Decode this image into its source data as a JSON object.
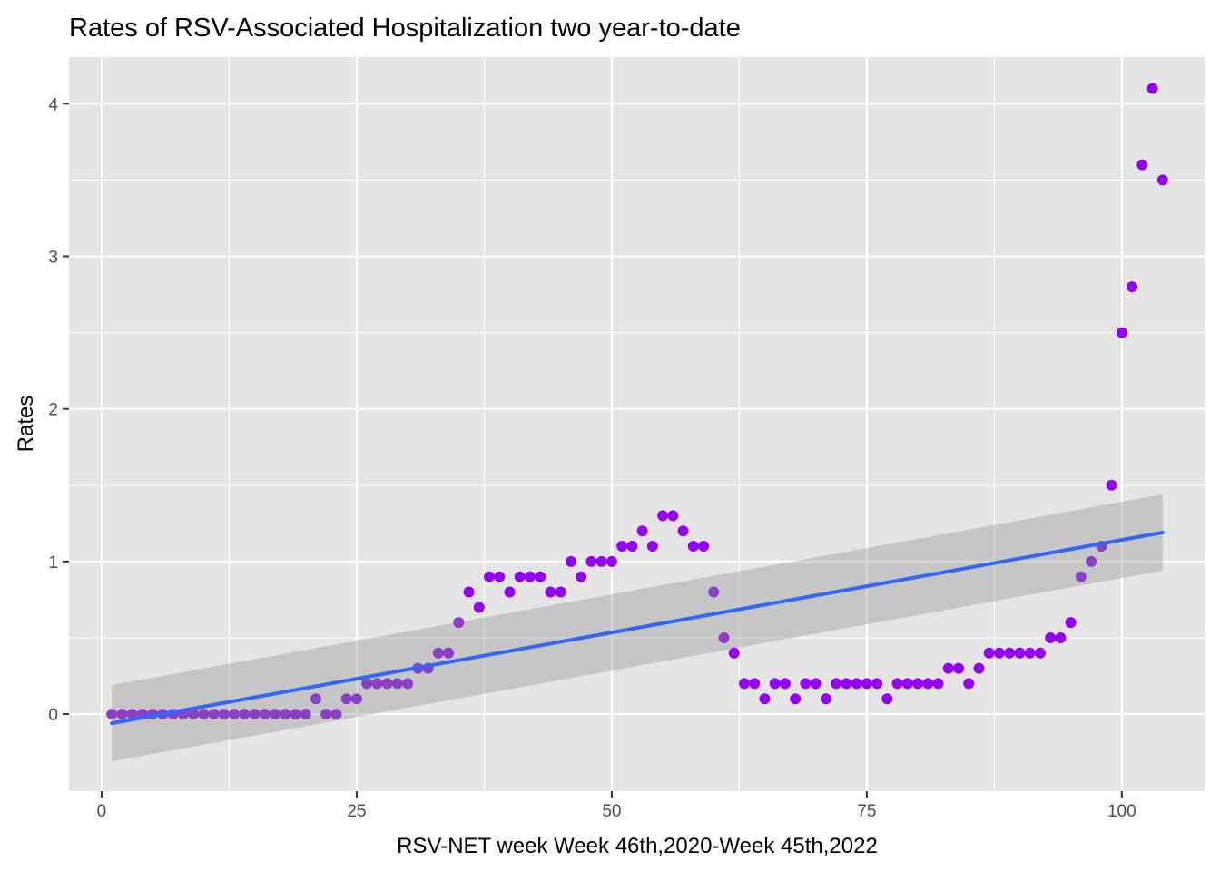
{
  "chart_data": {
    "type": "scatter",
    "title": "Rates of RSV-Associated Hospitalization two year-to-date",
    "xlabel": "RSV-NET week Week 46th,2020-Week 45th,2022",
    "ylabel": "Rates",
    "xlim": [
      -3.2,
      108.2
    ],
    "ylim": [
      -0.505,
      4.305
    ],
    "x_ticks": [
      0,
      25,
      50,
      75,
      100
    ],
    "x_tick_labels": [
      "0",
      "25",
      "50",
      "75",
      "100"
    ],
    "y_ticks": [
      0,
      1,
      2,
      3,
      4
    ],
    "y_tick_labels": [
      "0",
      "1",
      "2",
      "3",
      "4"
    ],
    "grid": true,
    "panel_background": "#e5e5e5",
    "grid_color": "#ffffff",
    "colors": {
      "point_high": "#9400f5",
      "point_low": "#8b3fc4",
      "fit_line": "#3366ff",
      "confidence_band": "#999999"
    },
    "points": {
      "x": [
        1,
        2,
        3,
        4,
        5,
        6,
        7,
        8,
        9,
        10,
        11,
        12,
        13,
        14,
        15,
        16,
        17,
        18,
        19,
        20,
        21,
        22,
        23,
        24,
        25,
        26,
        27,
        28,
        29,
        30,
        31,
        32,
        33,
        34,
        35,
        36,
        37,
        38,
        39,
        40,
        41,
        42,
        43,
        44,
        45,
        46,
        47,
        48,
        49,
        50,
        51,
        52,
        53,
        54,
        55,
        56,
        57,
        58,
        59,
        60,
        61,
        62,
        63,
        64,
        65,
        66,
        67,
        68,
        69,
        70,
        71,
        72,
        73,
        74,
        75,
        76,
        77,
        78,
        79,
        80,
        81,
        82,
        83,
        84,
        85,
        86,
        87,
        88,
        89,
        90,
        91,
        92,
        93,
        94,
        95,
        96,
        97,
        98,
        99,
        100,
        101,
        102,
        103,
        104
      ],
      "y": [
        0,
        0,
        0,
        0,
        0,
        0,
        0,
        0,
        0,
        0,
        0,
        0,
        0,
        0,
        0,
        0,
        0,
        0,
        0,
        0,
        0.1,
        0,
        0,
        0.1,
        0.1,
        0.2,
        0.2,
        0.2,
        0.2,
        0.2,
        0.3,
        0.3,
        0.4,
        0.4,
        0.6,
        0.8,
        0.7,
        0.9,
        0.9,
        0.8,
        0.9,
        0.9,
        0.9,
        0.8,
        0.8,
        1.0,
        0.9,
        1.0,
        1.0,
        1.0,
        1.1,
        1.1,
        1.2,
        1.1,
        1.3,
        1.3,
        1.2,
        1.1,
        1.1,
        0.8,
        0.5,
        0.4,
        0.2,
        0.2,
        0.1,
        0.2,
        0.2,
        0.1,
        0.2,
        0.2,
        0.1,
        0.2,
        0.2,
        0.2,
        0.2,
        0.2,
        0.1,
        0.2,
        0.2,
        0.2,
        0.2,
        0.2,
        0.3,
        0.3,
        0.2,
        0.3,
        0.4,
        0.4,
        0.4,
        0.4,
        0.4,
        0.4,
        0.5,
        0.5,
        0.6,
        0.9,
        1.0,
        1.1,
        1.5,
        2.5,
        2.8,
        3.6,
        4.1,
        3.5
      ]
    },
    "fit": {
      "method": "linear regression",
      "x": [
        1,
        104
      ],
      "y": [
        -0.06,
        1.19
      ],
      "ci_lower": [
        -0.31,
        0.94
      ],
      "ci_upper": [
        0.19,
        1.44
      ]
    }
  }
}
